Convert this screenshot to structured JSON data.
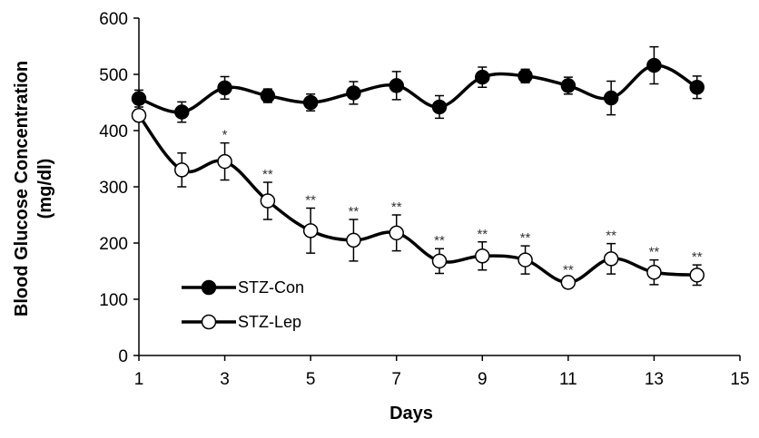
{
  "chart_data": {
    "type": "line",
    "x_label": "Days",
    "y_label": [
      "Blood Glucose Concentration",
      "(mg/dl)"
    ],
    "x": [
      1,
      2,
      3,
      4,
      5,
      6,
      7,
      8,
      9,
      10,
      11,
      12,
      13,
      14
    ],
    "series": [
      {
        "name": "STZ-Con",
        "color": "#000000",
        "marker": "filled",
        "values": [
          457,
          433,
          476,
          462,
          450,
          467,
          480,
          442,
          495,
          497,
          480,
          458,
          516,
          477
        ],
        "errors": [
          15,
          18,
          20,
          12,
          15,
          20,
          25,
          20,
          18,
          12,
          15,
          30,
          33,
          20
        ]
      },
      {
        "name": "STZ-Lep",
        "color": "#000000",
        "marker": "open",
        "values": [
          427,
          330,
          345,
          275,
          222,
          205,
          218,
          168,
          177,
          170,
          130,
          172,
          148,
          143
        ],
        "errors": [
          10,
          30,
          33,
          33,
          40,
          37,
          32,
          22,
          25,
          25,
          8,
          27,
          22,
          18
        ]
      }
    ],
    "annotations": [
      {
        "x": 3,
        "text": "*"
      },
      {
        "x": 4,
        "text": "**"
      },
      {
        "x": 5,
        "text": "**"
      },
      {
        "x": 6,
        "text": "**"
      },
      {
        "x": 7,
        "text": "**"
      },
      {
        "x": 8,
        "text": "**"
      },
      {
        "x": 9,
        "text": "**"
      },
      {
        "x": 10,
        "text": "**"
      },
      {
        "x": 11,
        "text": "**"
      },
      {
        "x": 12,
        "text": "**"
      },
      {
        "x": 13,
        "text": "**"
      },
      {
        "x": 14,
        "text": "**"
      }
    ],
    "xlim": [
      1,
      15
    ],
    "xticks": [
      1,
      3,
      5,
      7,
      9,
      11,
      13,
      15
    ],
    "ylim": [
      0,
      600
    ],
    "yticks": [
      0,
      100,
      200,
      300,
      400,
      500,
      600
    ],
    "grid": false,
    "legend": "lower left"
  }
}
